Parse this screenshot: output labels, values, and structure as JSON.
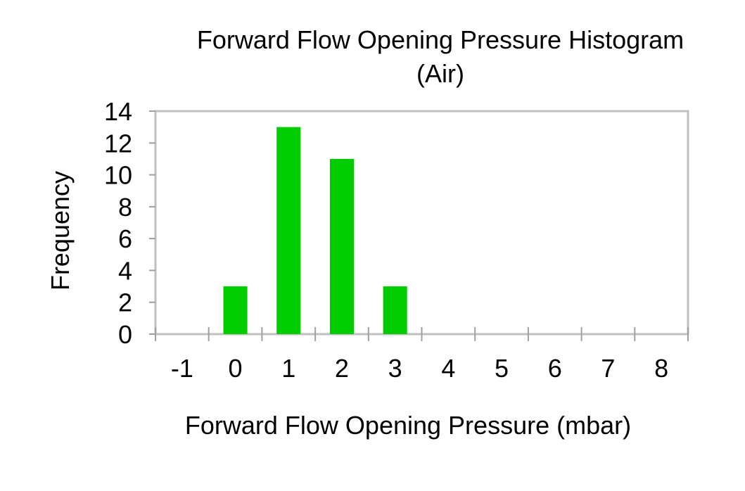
{
  "chart_data": {
    "type": "bar",
    "title_lines": [
      "Forward Flow Opening Pressure Histogram",
      "(Air)"
    ],
    "xlabel": "Forward Flow Opening Pressure (mbar)",
    "ylabel": "Frequency",
    "categories": [
      "-1",
      "0",
      "1",
      "2",
      "3",
      "4",
      "5",
      "6",
      "7",
      "8"
    ],
    "values": [
      0,
      3,
      13,
      11,
      3,
      0,
      0,
      0,
      0,
      0
    ],
    "ylim": [
      0,
      14
    ],
    "yticks": [
      "0",
      "2",
      "4",
      "6",
      "8",
      "10",
      "12",
      "14"
    ],
    "grid": false,
    "legend": "none",
    "colors": {
      "bar": "#00cc00",
      "frame": "#c0c0c0",
      "tick": "#a0a0a0"
    }
  }
}
